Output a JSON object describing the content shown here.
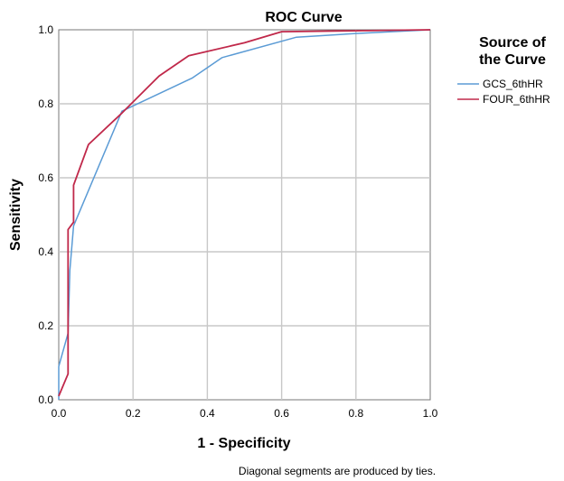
{
  "chart_data": {
    "type": "line",
    "title": "ROC Curve",
    "xlabel": "1 - Specificity",
    "ylabel": "Sensitivity",
    "xlim": [
      0,
      1
    ],
    "ylim": [
      0,
      1
    ],
    "xticks": [
      "0.0",
      "0.2",
      "0.4",
      "0.6",
      "0.8",
      "1.0"
    ],
    "yticks": [
      "0.0",
      "0.2",
      "0.4",
      "0.6",
      "0.8",
      "1.0"
    ],
    "grid": true,
    "legend": {
      "title_lines": [
        "Source of",
        "the Curve"
      ],
      "placement": "right"
    },
    "series": [
      {
        "name": "GCS_6thHR",
        "color": "#5b9bd5",
        "points": [
          [
            0,
            0
          ],
          [
            0,
            0.09
          ],
          [
            0.025,
            0.18
          ],
          [
            0.03,
            0.35
          ],
          [
            0.04,
            0.47
          ],
          [
            0.17,
            0.78
          ],
          [
            0.36,
            0.87
          ],
          [
            0.44,
            0.925
          ],
          [
            0.64,
            0.98
          ],
          [
            0.8,
            0.99
          ],
          [
            1,
            1
          ]
        ]
      },
      {
        "name": "FOUR_6thHR",
        "color": "#c0284a",
        "points": [
          [
            0,
            0.01
          ],
          [
            0.025,
            0.07
          ],
          [
            0.025,
            0.46
          ],
          [
            0.04,
            0.48
          ],
          [
            0.04,
            0.58
          ],
          [
            0.08,
            0.69
          ],
          [
            0.17,
            0.775
          ],
          [
            0.27,
            0.875
          ],
          [
            0.35,
            0.93
          ],
          [
            0.5,
            0.965
          ],
          [
            0.6,
            0.995
          ],
          [
            1,
            1
          ]
        ]
      }
    ],
    "footnote": "Diagonal segments are produced by ties."
  }
}
